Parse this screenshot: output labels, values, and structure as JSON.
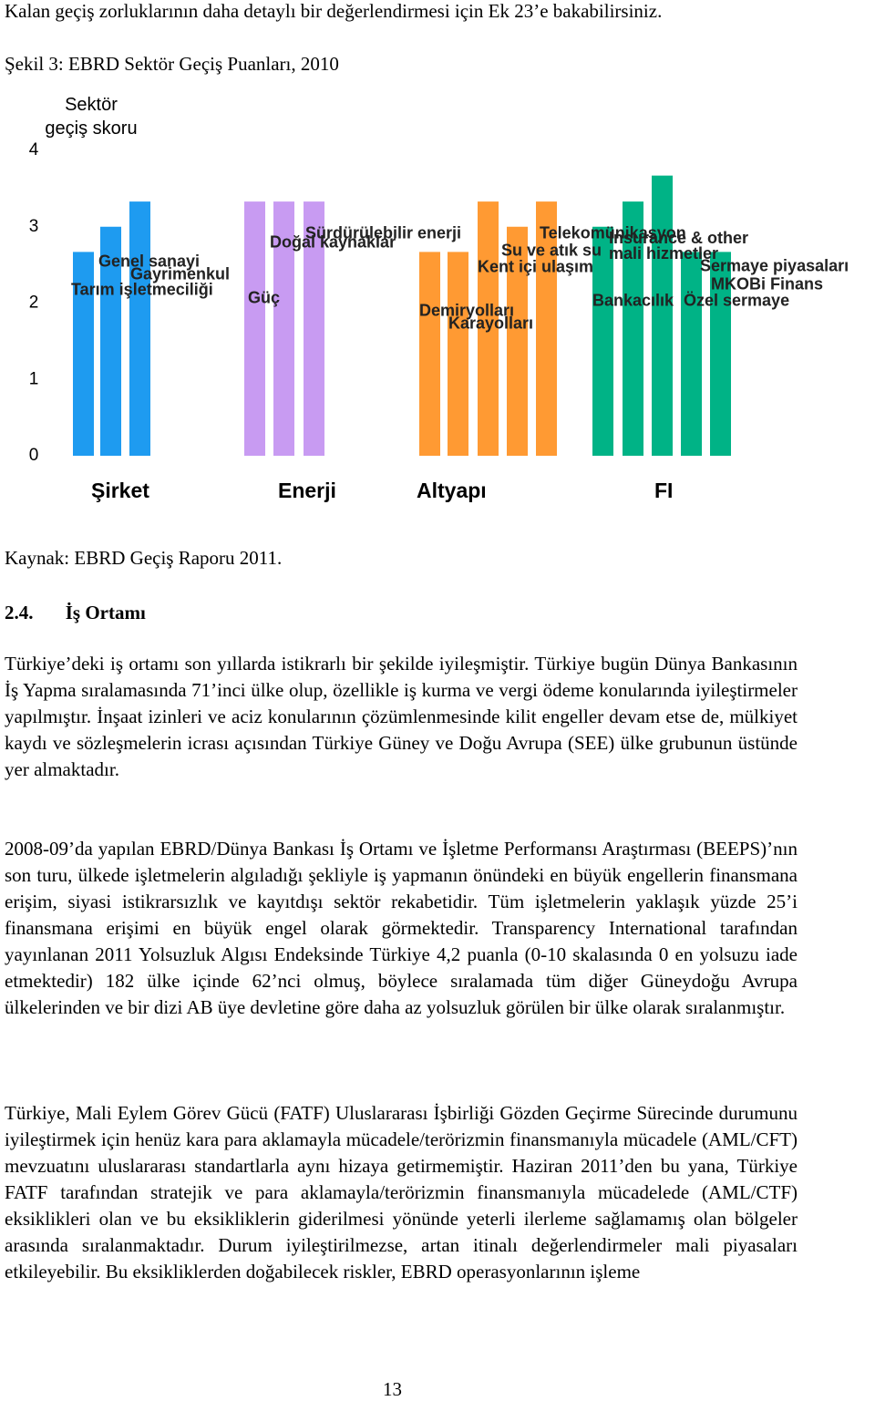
{
  "intro": "Kalan geçiş zorluklarının daha detaylı bir değerlendirmesi için Ek 23’e bakabilirsiniz.",
  "figure_title": "Şekil 3: EBRD Sektör Geçiş Puanları, 2010",
  "chart_data": {
    "type": "bar",
    "ylabel": "Sektör geçiş skoru",
    "ylim": [
      0,
      4
    ],
    "yticks": [
      0,
      1,
      2,
      3,
      4
    ],
    "series": [
      {
        "name": "Şirket",
        "color": "#1e9bf0",
        "categories": [
          "Tarım işletmeciliği",
          "Genel sanayi",
          "Gayrimenkul"
        ],
        "values": [
          2.67,
          3,
          3.33
        ]
      },
      {
        "name": "Enerji",
        "color": "#c89bf2",
        "categories": [
          "Güç",
          "Doğal kaynaklar",
          "Sürdürülebilir enerji"
        ],
        "values": [
          3.33,
          3.33,
          3.33
        ]
      },
      {
        "name": "Altyapı",
        "color": "#ff9a33",
        "categories": [
          "Demiryolları",
          "Karayolları",
          "Kent içi ulaşım",
          "Su ve atık su",
          "Telekomünikasyon"
        ],
        "values": [
          2.67,
          2.67,
          3.33,
          3,
          3.33
        ]
      },
      {
        "name": "FI",
        "color": "#00b386",
        "categories": [
          "Bankacılık",
          "Insurance & other mali hizmetler",
          "Sermaye piyasaları",
          "MKOBi Finans",
          "Özel sermaye"
        ],
        "values": [
          3,
          3.33,
          3.67,
          2.67,
          2.67
        ]
      }
    ]
  },
  "source": "Kaynak: EBRD Geçiş Raporu 2011.",
  "section": {
    "number": "2.4.",
    "title": "İş Ortamı"
  },
  "paragraphs": [
    "Türkiye’deki iş ortamı son yıllarda istikrarlı bir şekilde iyileşmiştir. Türkiye bugün Dünya Bankasının İş Yapma sıralamasında 71’inci ülke olup, özellikle iş kurma ve vergi ödeme konularında iyileştirmeler yapılmıştır. İnşaat izinleri ve aciz konularının çözümlenmesinde kilit engeller devam etse de, mülkiyet kaydı ve sözleşmelerin icrası açısından Türkiye Güney ve Doğu Avrupa (SEE) ülke grubunun üstünde yer almaktadır.",
    "2008-09’da yapılan EBRD/Dünya Bankası İş Ortamı ve İşletme Performansı Araştırması (BEEPS)’nın son turu, ülkede işletmelerin algıladığı şekliyle iş yapmanın önündeki en büyük engellerin finansmana erişim, siyasi istikrarsızlık ve kayıtdışı sektör rekabetidir. Tüm işletmelerin yaklaşık yüzde 25’i finansmana erişimi en büyük engel olarak görmektedir. Transparency International tarafından yayınlanan 2011 Yolsuzluk Algısı Endeksinde Türkiye 4,2 puanla (0-10 skalasında 0 en yolsuzu iade etmektedir) 182 ülke içinde 62’nci olmuş, böylece sıralamada tüm diğer Güneydoğu Avrupa ülkelerinden ve bir dizi AB üye devletine göre daha az yolsuzluk görülen bir ülke olarak sıralanmıştır.",
    "Türkiye, Mali Eylem Görev Gücü (FATF) Uluslararası İşbirliği Gözden Geçirme Sürecinde durumunu iyileştirmek için henüz kara para aklamayla mücadele/terörizmin finansmanıyla mücadele (AML/CFT) mevzuatını uluslararası standartlarla aynı hizaya getirmemiştir. Haziran 2011’den bu yana, Türkiye FATF tarafından stratejik ve para aklamayla/terörizmin finansmanıyla mücadelede (AML/CTF) eksiklikleri olan ve bu eksikliklerin giderilmesi yönünde yeterli ilerleme sağlamamış olan bölgeler arasında sıralanmaktadır. Durum iyileştirilmezse, artan itinalı değerlendirmeler mali piyasaları etkileyebilir. Bu eksikliklerden doğabilecek riskler, EBRD operasyonlarının işleme"
  ],
  "page_number": "13"
}
